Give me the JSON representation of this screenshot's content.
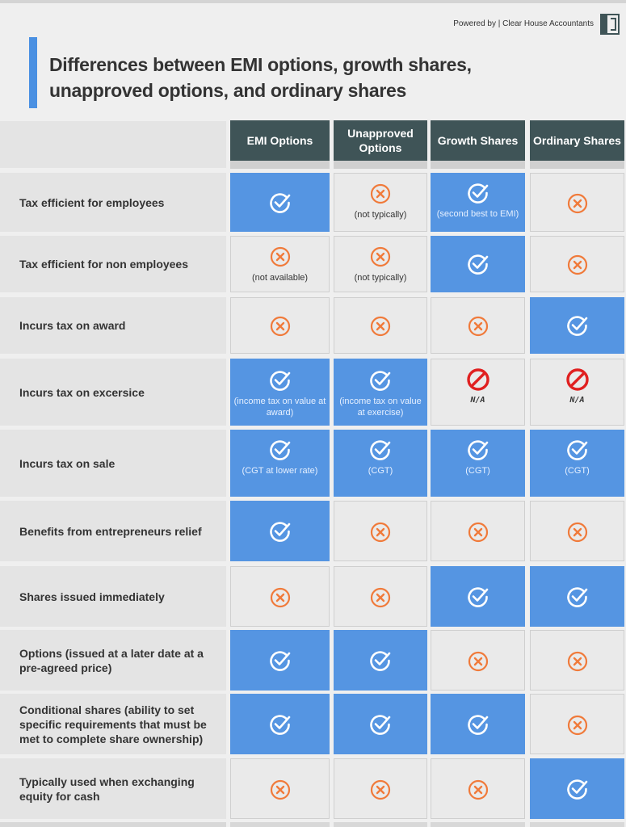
{
  "powered_by": "Powered by | Clear House Accountants",
  "title": "Differences between EMI options, growth shares, unapproved options, and ordinary shares",
  "colors": {
    "accent": "#4a90e2",
    "header": "#3f5457",
    "yes": "#5595e2",
    "cross": "#f07a3a",
    "na": "#e02020"
  },
  "columns": [
    "EMI Options",
    "Unapproved Options",
    "Growth Shares",
    "Ordinary Shares"
  ],
  "rows": [
    {
      "label": "Tax efficient for employees",
      "cells": [
        {
          "mark": "check",
          "note": ""
        },
        {
          "mark": "cross",
          "note": "(not typically)"
        },
        {
          "mark": "check",
          "note": "(second best to EMI)"
        },
        {
          "mark": "cross",
          "note": ""
        }
      ]
    },
    {
      "label": "Tax efficient for non employees",
      "cells": [
        {
          "mark": "cross",
          "note": "(not available)"
        },
        {
          "mark": "cross",
          "note": "(not typically)"
        },
        {
          "mark": "check",
          "note": ""
        },
        {
          "mark": "cross",
          "note": ""
        }
      ]
    },
    {
      "label": "Incurs tax on award",
      "cells": [
        {
          "mark": "cross",
          "note": ""
        },
        {
          "mark": "cross",
          "note": ""
        },
        {
          "mark": "cross",
          "note": ""
        },
        {
          "mark": "check",
          "note": ""
        }
      ]
    },
    {
      "label": "Incurs tax on excersice",
      "cells": [
        {
          "mark": "check",
          "note": "(income tax on value at award)"
        },
        {
          "mark": "check",
          "note": "(income tax on value at exercise)"
        },
        {
          "mark": "na",
          "note": "N/A"
        },
        {
          "mark": "na",
          "note": "N/A"
        }
      ]
    },
    {
      "label": "Incurs tax on sale",
      "cells": [
        {
          "mark": "check",
          "note": "(CGT at lower rate)"
        },
        {
          "mark": "check",
          "note": "(CGT)"
        },
        {
          "mark": "check",
          "note": "(CGT)"
        },
        {
          "mark": "check",
          "note": "(CGT)"
        }
      ]
    },
    {
      "label": "Benefits from entrepreneurs relief",
      "cells": [
        {
          "mark": "check",
          "note": ""
        },
        {
          "mark": "cross",
          "note": ""
        },
        {
          "mark": "cross",
          "note": ""
        },
        {
          "mark": "cross",
          "note": ""
        }
      ]
    },
    {
      "label": "Shares issued immediately",
      "cells": [
        {
          "mark": "cross",
          "note": ""
        },
        {
          "mark": "cross",
          "note": ""
        },
        {
          "mark": "check",
          "note": ""
        },
        {
          "mark": "check",
          "note": ""
        }
      ]
    },
    {
      "label": "Options (issued at a later date at a pre-agreed price)",
      "cells": [
        {
          "mark": "check",
          "note": ""
        },
        {
          "mark": "check",
          "note": ""
        },
        {
          "mark": "cross",
          "note": ""
        },
        {
          "mark": "cross",
          "note": ""
        }
      ]
    },
    {
      "label": "Conditional shares (ability to set specific requirements that must be met to complete share ownership)",
      "cells": [
        {
          "mark": "check",
          "note": ""
        },
        {
          "mark": "check",
          "note": ""
        },
        {
          "mark": "check",
          "note": ""
        },
        {
          "mark": "cross",
          "note": ""
        }
      ]
    },
    {
      "label": "Typically used when exchanging equity for cash",
      "cells": [
        {
          "mark": "cross",
          "note": ""
        },
        {
          "mark": "cross",
          "note": ""
        },
        {
          "mark": "cross",
          "note": ""
        },
        {
          "mark": "check",
          "note": ""
        }
      ]
    }
  ]
}
